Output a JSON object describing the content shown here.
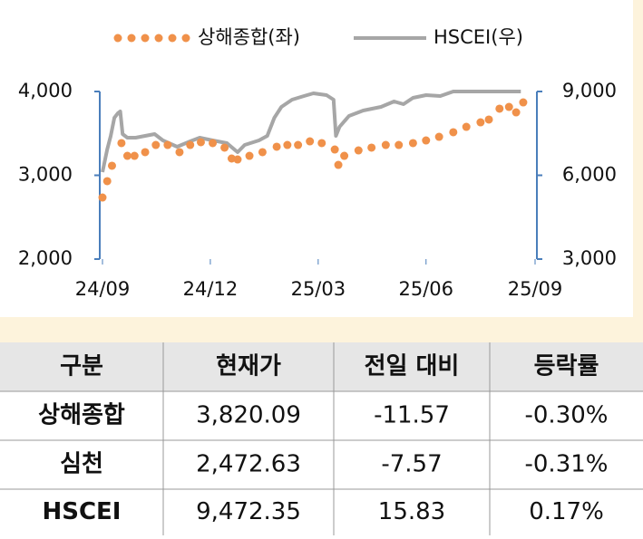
{
  "chart_data": {
    "type": "line",
    "series": [
      {
        "name": "상해종합(좌)",
        "color": "#f0914a",
        "style": "dots",
        "x": [
          0,
          4,
          8,
          16,
          21,
          27,
          36,
          45,
          55,
          65,
          74,
          83,
          93,
          103,
          109,
          114,
          124,
          135,
          147,
          156,
          165,
          175,
          185,
          196,
          199,
          204,
          216,
          227,
          239,
          250,
          262,
          273,
          284,
          296,
          307,
          319,
          326,
          335,
          343,
          349,
          355
        ],
        "values": [
          2735,
          2930,
          3114,
          3384,
          3232,
          3232,
          3276,
          3362,
          3362,
          3276,
          3362,
          3395,
          3384,
          3330,
          3200,
          3189,
          3232,
          3276,
          3341,
          3362,
          3362,
          3405,
          3384,
          3308,
          3124,
          3232,
          3297,
          3330,
          3362,
          3362,
          3384,
          3416,
          3459,
          3514,
          3578,
          3632,
          3665,
          3795,
          3816,
          3751,
          3870
        ]
      },
      {
        "name": "HSCEI(우)",
        "color": "#a6a6a6",
        "style": "line",
        "axis": "y2",
        "x": [
          0,
          4,
          7,
          10,
          13,
          15,
          17,
          21,
          28,
          36,
          44,
          51,
          63,
          74,
          82,
          93,
          105,
          114,
          120,
          132,
          139,
          145,
          151,
          160,
          170,
          178,
          189,
          195,
          197,
          200,
          208,
          220,
          235,
          246,
          254,
          262,
          273,
          285,
          296,
          311,
          327,
          342,
          353
        ],
        "values": [
          6114,
          6924,
          7411,
          8060,
          8222,
          8287,
          7476,
          7346,
          7346,
          7411,
          7476,
          7249,
          7022,
          7216,
          7346,
          7249,
          7151,
          6827,
          7087,
          7249,
          7411,
          8060,
          8449,
          8708,
          8838,
          8935,
          8870,
          8708,
          7411,
          7735,
          8124,
          8319,
          8449,
          8643,
          8546,
          8773,
          8870,
          8838,
          9000,
          9000,
          9000,
          9000,
          9000
        ]
      }
    ],
    "xlim": [
      0,
      365
    ],
    "xticks": [
      {
        "value": 0,
        "label": "24/09"
      },
      {
        "value": 91,
        "label": "24/12"
      },
      {
        "value": 182,
        "label": "25/03"
      },
      {
        "value": 273,
        "label": "25/06"
      },
      {
        "value": 365,
        "label": "25/09"
      }
    ],
    "ylim": [
      2000,
      4000
    ],
    "yticks": [
      {
        "value": 2000,
        "label": "2,000"
      },
      {
        "value": 3000,
        "label": "3,000"
      },
      {
        "value": 4000,
        "label": "4,000"
      }
    ],
    "y2lim": [
      3000,
      9000
    ],
    "y2ticks": [
      {
        "value": 3000,
        "label": "3,000"
      },
      {
        "value": 6000,
        "label": "6,000"
      },
      {
        "value": 9000,
        "label": "9,000"
      }
    ],
    "axis_color": "#4a7ebb"
  },
  "table": {
    "header": [
      "구분",
      "현재가",
      "전일 대비",
      "등락률"
    ],
    "rows": [
      [
        "상해종합",
        "3,820.09",
        "-11.57",
        "-0.30%"
      ],
      [
        "심천",
        "2,472.63",
        "-7.57",
        "-0.31%"
      ],
      [
        "HSCEI",
        "9,472.35",
        "15.83",
        "0.17%"
      ]
    ]
  }
}
